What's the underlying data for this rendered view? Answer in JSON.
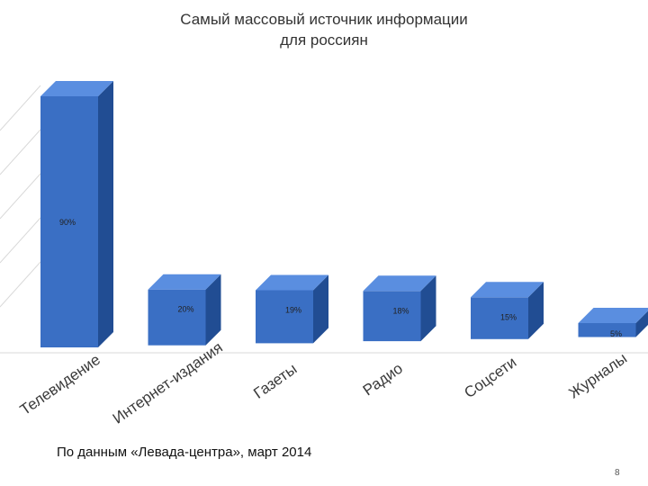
{
  "chart_data": {
    "type": "bar",
    "title": "Самый массовый источник информации",
    "title_line2": "для россиян",
    "categories": [
      "Телевидение",
      "Интернет-издания",
      "Газеты",
      "Радио",
      "Соцсети",
      "Журналы"
    ],
    "values": [
      90,
      20,
      19,
      18,
      15,
      5
    ],
    "data_labels": [
      "90%",
      "20%",
      "19%",
      "18%",
      "15%",
      "5%"
    ],
    "ylim": [
      0,
      100
    ],
    "grid": true,
    "bar_color": "#3a6fc4",
    "bar_top_color": "#5a8ee0",
    "bar_side_color": "#214d93"
  },
  "footer": {
    "source": "По данным «Левада-центра», март 2014",
    "page_number": "8"
  }
}
